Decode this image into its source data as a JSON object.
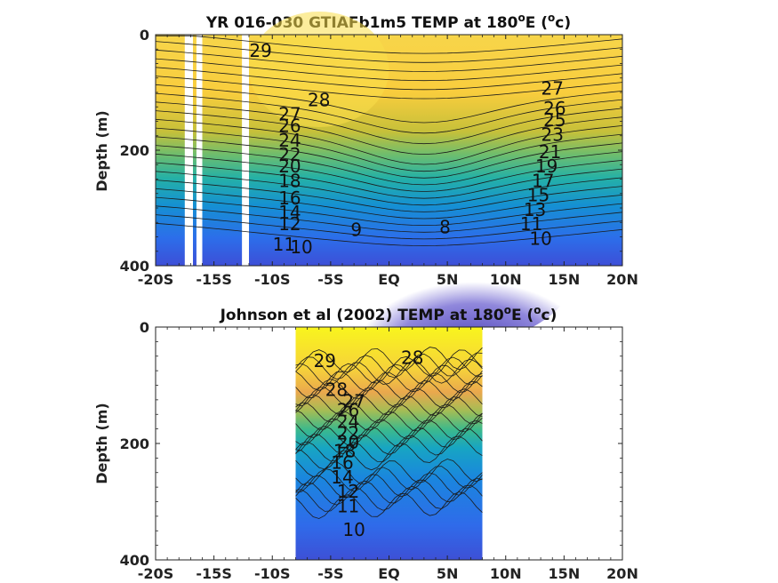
{
  "chart_data": [
    {
      "type": "heatmap",
      "title": "YR 016-030 GTIAFb1m5 TEMP at 180",
      "title_sup": "o",
      "title_tail": "E (",
      "title_unit_sup": "o",
      "title_unit": "c)",
      "ylabel": "Depth (m)",
      "xlim": [
        -20,
        20
      ],
      "ylim": [
        0,
        400
      ],
      "y_reversed": true,
      "x_ticks": [
        -20,
        -15,
        -10,
        -5,
        0,
        5,
        10,
        15,
        20
      ],
      "x_tick_labels": [
        "-20S",
        "-15S",
        "-10S",
        "-5S",
        "EQ",
        "5N",
        "10N",
        "15N",
        "20N"
      ],
      "y_ticks": [
        0,
        200,
        400
      ],
      "y_tick_labels": [
        "0",
        "200",
        "400"
      ],
      "data_extent_x": [
        -20,
        20
      ],
      "missing_columns_x": [
        [
          -17.5,
          -16.8
        ],
        [
          -16.5,
          -16.0
        ],
        [
          -12.6,
          -12.0
        ]
      ],
      "colormap": "parula",
      "color_range": [
        7,
        30
      ],
      "contour_interval": 1,
      "contour_labels": [
        {
          "text": "29",
          "x": -11,
          "y": 30
        },
        {
          "text": "28",
          "x": -6,
          "y": 115
        },
        {
          "text": "27",
          "x": -8.5,
          "y": 140
        },
        {
          "text": "26",
          "x": -8.5,
          "y": 160
        },
        {
          "text": "24",
          "x": -8.5,
          "y": 185
        },
        {
          "text": "22",
          "x": -8.5,
          "y": 210
        },
        {
          "text": "20",
          "x": -8.5,
          "y": 230
        },
        {
          "text": "18",
          "x": -8.5,
          "y": 255
        },
        {
          "text": "16",
          "x": -8.5,
          "y": 285
        },
        {
          "text": "14",
          "x": -8.5,
          "y": 310
        },
        {
          "text": "12",
          "x": -8.5,
          "y": 330
        },
        {
          "text": "11",
          "x": -9,
          "y": 365
        },
        {
          "text": "10",
          "x": -7.5,
          "y": 370
        },
        {
          "text": "9",
          "x": -2.8,
          "y": 340
        },
        {
          "text": "8",
          "x": 4.8,
          "y": 335
        },
        {
          "text": "27",
          "x": 14,
          "y": 95
        },
        {
          "text": "26",
          "x": 14.2,
          "y": 130
        },
        {
          "text": "25",
          "x": 14.2,
          "y": 150
        },
        {
          "text": "23",
          "x": 14,
          "y": 175
        },
        {
          "text": "21",
          "x": 13.8,
          "y": 205
        },
        {
          "text": "19",
          "x": 13.5,
          "y": 230
        },
        {
          "text": "17",
          "x": 13.2,
          "y": 255
        },
        {
          "text": "15",
          "x": 12.8,
          "y": 280
        },
        {
          "text": "13",
          "x": 12.5,
          "y": 305
        },
        {
          "text": "11",
          "x": 12.2,
          "y": 330
        },
        {
          "text": "10",
          "x": 13,
          "y": 355
        }
      ]
    },
    {
      "type": "heatmap",
      "title": "Johnson et al (2002) TEMP at 180",
      "title_sup": "o",
      "title_tail": "E (",
      "title_unit_sup": "o",
      "title_unit": "c)",
      "ylabel": "Depth (m)",
      "xlim": [
        -20,
        20
      ],
      "ylim": [
        0,
        400
      ],
      "y_reversed": true,
      "x_ticks": [
        -20,
        -15,
        -10,
        -5,
        0,
        5,
        10,
        15,
        20
      ],
      "x_tick_labels": [
        "-20S",
        "-15S",
        "-10S",
        "-5S",
        "EQ",
        "5N",
        "10N",
        "15N",
        "20N"
      ],
      "y_ticks": [
        0,
        200,
        400
      ],
      "y_tick_labels": [
        "0",
        "200",
        "400"
      ],
      "data_extent_x": [
        -8,
        8
      ],
      "missing_columns_x": [],
      "colormap": "parula",
      "color_range": [
        7,
        30
      ],
      "contour_interval": 1,
      "contour_labels": [
        {
          "text": "29",
          "x": -5.5,
          "y": 60
        },
        {
          "text": "28",
          "x": 2,
          "y": 55
        },
        {
          "text": "28",
          "x": -4.5,
          "y": 110
        },
        {
          "text": "27",
          "x": -3,
          "y": 130
        },
        {
          "text": "26",
          "x": -3.5,
          "y": 145
        },
        {
          "text": "24",
          "x": -3.5,
          "y": 165
        },
        {
          "text": "22",
          "x": -3.5,
          "y": 185
        },
        {
          "text": "20",
          "x": -3.5,
          "y": 200
        },
        {
          "text": "18",
          "x": -3.8,
          "y": 215
        },
        {
          "text": "16",
          "x": -4,
          "y": 235
        },
        {
          "text": "14",
          "x": -4,
          "y": 260
        },
        {
          "text": "12",
          "x": -3.5,
          "y": 285
        },
        {
          "text": "11",
          "x": -3.5,
          "y": 310
        },
        {
          "text": "10",
          "x": -3,
          "y": 350
        }
      ]
    }
  ]
}
